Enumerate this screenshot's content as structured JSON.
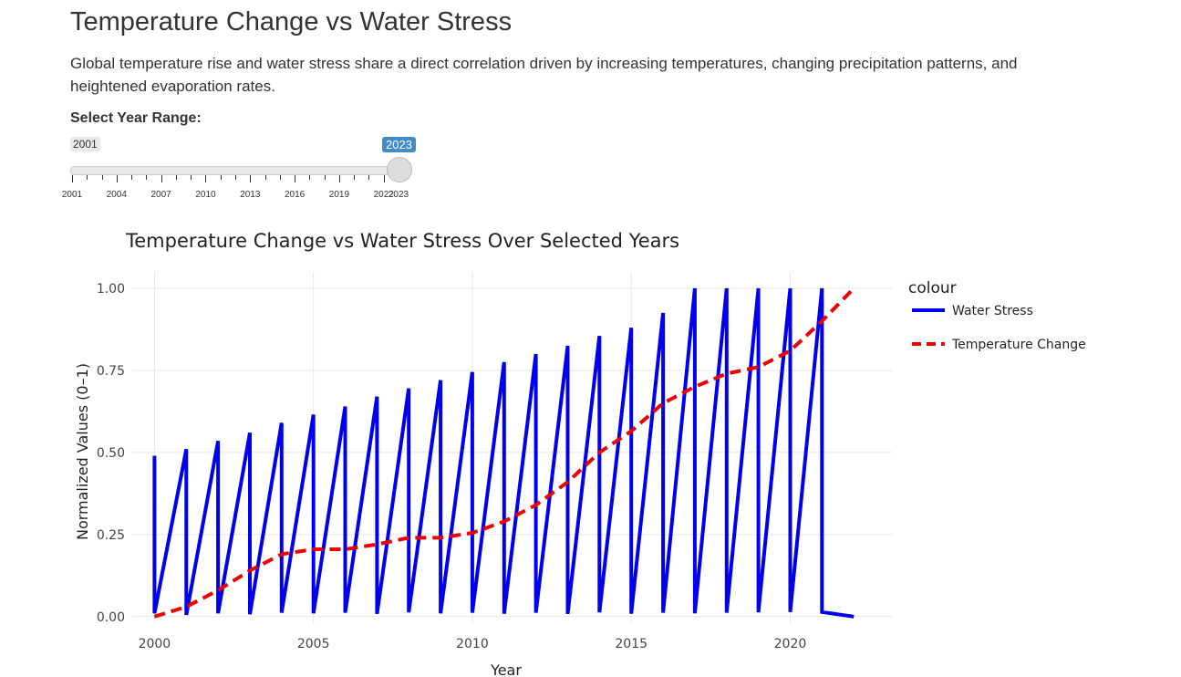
{
  "page": {
    "title": "Temperature Change vs Water Stress",
    "description": "Global temperature rise and water stress share a direct correlation driven by increasing temperatures, changing precipitation patterns, and heightened evaporation rates."
  },
  "slider": {
    "label": "Select Year Range:",
    "min": 2001,
    "max": 2023,
    "value_from": "2001",
    "value_to": "2023",
    "tick_labels": [
      "2001",
      "2004",
      "2007",
      "2010",
      "2013",
      "2016",
      "2019",
      "2022",
      "2023"
    ]
  },
  "chart_data": {
    "type": "line",
    "title": "Temperature Change vs Water Stress Over Selected Years",
    "xlabel": "Year",
    "ylabel": "Normalized Values (0–1)",
    "xlim": [
      1999.3,
      2023.2
    ],
    "ylim": [
      -0.02,
      1.05
    ],
    "x_ticks": [
      2000,
      2005,
      2010,
      2015,
      2020
    ],
    "y_ticks": [
      0.0,
      0.25,
      0.5,
      0.75,
      1.0
    ],
    "y_tick_labels": [
      "0.00",
      "0.25",
      "0.50",
      "0.75",
      "1.00"
    ],
    "grid": true,
    "legend_title": "colour",
    "legend_position": "right",
    "series": [
      {
        "name": "Water Stress",
        "color": "#0000ee",
        "style": "solid",
        "x": [
          2000,
          2000,
          2001,
          2001,
          2002,
          2002,
          2003,
          2003,
          2004,
          2004,
          2005,
          2005,
          2006,
          2006,
          2007,
          2007,
          2008,
          2008,
          2009,
          2009,
          2010,
          2010,
          2011,
          2011,
          2012,
          2012,
          2013,
          2013,
          2014,
          2014,
          2015,
          2015,
          2016,
          2016,
          2017,
          2017,
          2018,
          2018,
          2019,
          2019,
          2020,
          2020,
          2021,
          2021,
          2022
        ],
        "y": [
          0.49,
          0.01,
          0.51,
          0.005,
          0.535,
          0.01,
          0.56,
          0.007,
          0.59,
          0.012,
          0.615,
          0.01,
          0.64,
          0.012,
          0.67,
          0.008,
          0.695,
          0.013,
          0.72,
          0.01,
          0.745,
          0.012,
          0.775,
          0.009,
          0.8,
          0.012,
          0.825,
          0.008,
          0.855,
          0.013,
          0.88,
          0.009,
          0.925,
          0.012,
          1.0,
          0.01,
          1.0,
          0.012,
          1.0,
          0.013,
          1.0,
          0.014,
          1.0,
          0.014,
          0.0
        ]
      },
      {
        "name": "Temperature Change",
        "color": "#ee0000",
        "style": "dashed",
        "x": [
          2000,
          2001,
          2002,
          2003,
          2004,
          2005,
          2006,
          2007,
          2008,
          2009,
          2010,
          2011,
          2012,
          2013,
          2014,
          2015,
          2016,
          2017,
          2018,
          2019,
          2020,
          2021,
          2022
        ],
        "y": [
          0.0,
          0.03,
          0.08,
          0.14,
          0.19,
          0.205,
          0.205,
          0.22,
          0.24,
          0.24,
          0.255,
          0.29,
          0.34,
          0.41,
          0.5,
          0.565,
          0.65,
          0.7,
          0.74,
          0.76,
          0.81,
          0.9,
          1.0
        ]
      }
    ]
  }
}
